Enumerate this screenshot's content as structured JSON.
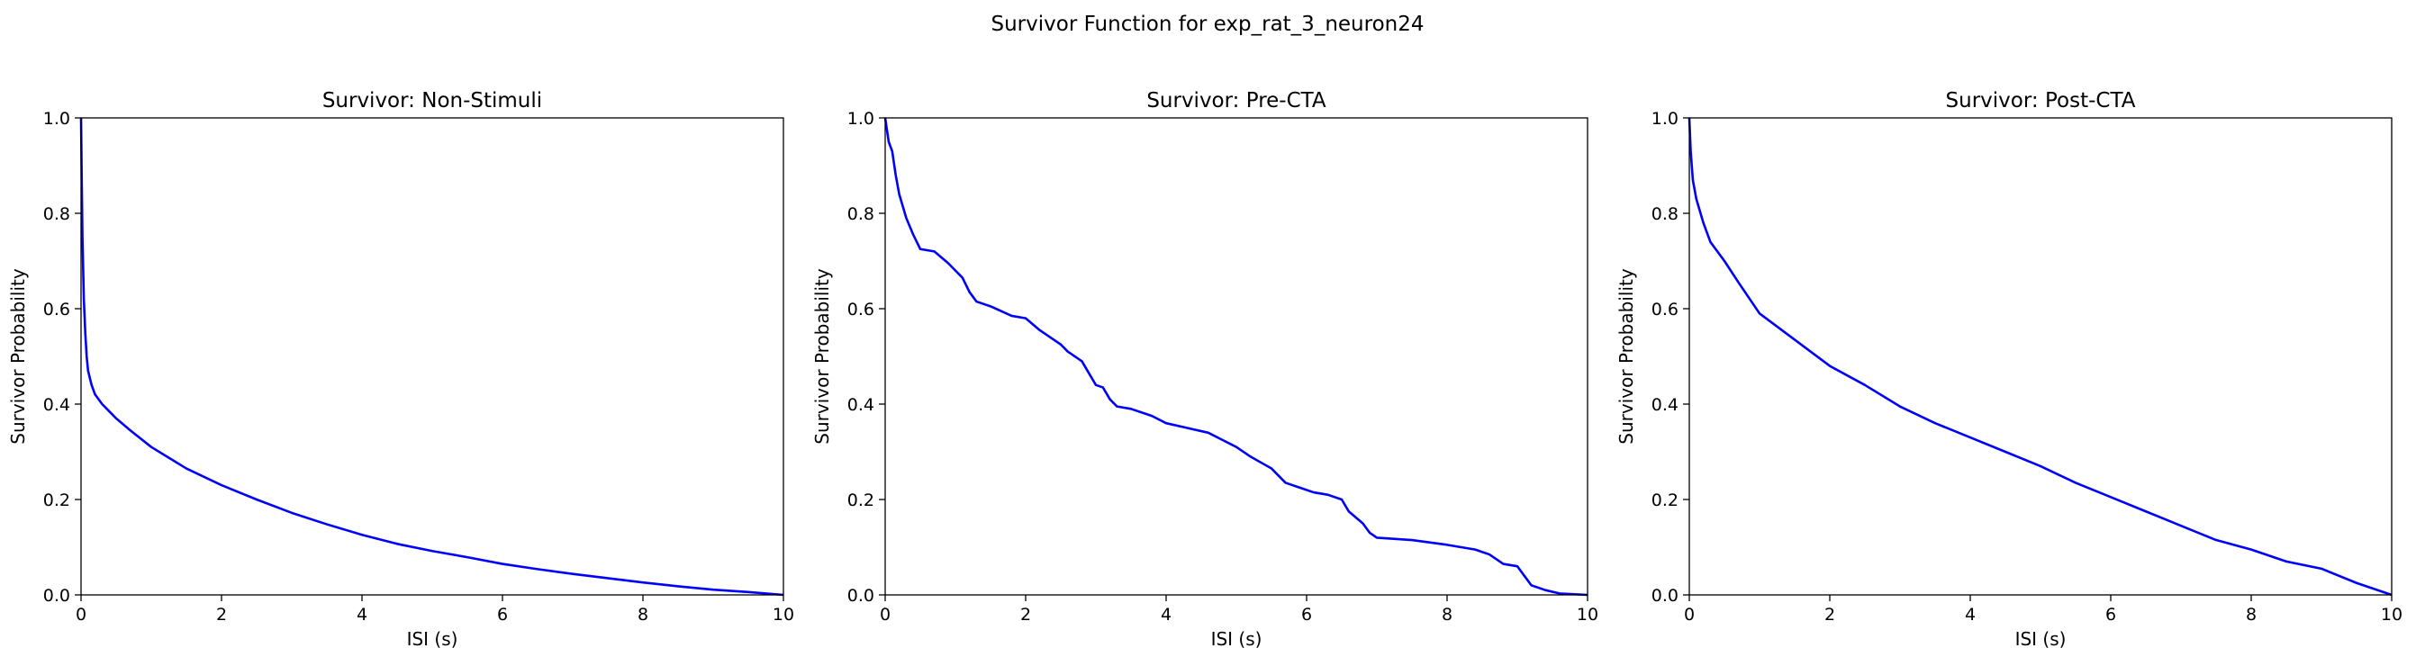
{
  "figure": {
    "suptitle": "Survivor Function for exp_rat_3_neuron24"
  },
  "chart_data": [
    {
      "type": "line",
      "title": "Survivor: Non-Stimuli",
      "xlabel": "ISI (s)",
      "ylabel": "Survivor Probability",
      "xlim": [
        0,
        10
      ],
      "ylim": [
        0,
        1
      ],
      "xticks": [
        "0",
        "2",
        "4",
        "6",
        "8",
        "10"
      ],
      "yticks": [
        "0.0",
        "0.2",
        "0.4",
        "0.6",
        "0.8",
        "1.0"
      ],
      "grid": false,
      "legend": "none",
      "color": "#0000ff",
      "x": [
        0,
        0.01,
        0.02,
        0.04,
        0.06,
        0.08,
        0.1,
        0.15,
        0.2,
        0.3,
        0.4,
        0.5,
        0.7,
        1.0,
        1.5,
        2.0,
        2.5,
        3.0,
        3.5,
        4.0,
        4.5,
        5.0,
        5.5,
        6.0,
        6.5,
        7.0,
        7.5,
        8.0,
        8.5,
        9.0,
        9.5,
        10.0
      ],
      "y": [
        1.0,
        0.87,
        0.75,
        0.62,
        0.55,
        0.5,
        0.47,
        0.44,
        0.42,
        0.4,
        0.385,
        0.37,
        0.345,
        0.31,
        0.265,
        0.23,
        0.2,
        0.172,
        0.148,
        0.126,
        0.107,
        0.092,
        0.079,
        0.065,
        0.054,
        0.044,
        0.035,
        0.026,
        0.018,
        0.011,
        0.006,
        0.0
      ]
    },
    {
      "type": "line",
      "title": "Survivor: Pre-CTA",
      "xlabel": "ISI (s)",
      "ylabel": "Survivor Probability",
      "xlim": [
        0,
        10
      ],
      "ylim": [
        0,
        1
      ],
      "xticks": [
        "0",
        "2",
        "4",
        "6",
        "8",
        "10"
      ],
      "yticks": [
        "0.0",
        "0.2",
        "0.4",
        "0.6",
        "0.8",
        "1.0"
      ],
      "grid": false,
      "legend": "none",
      "color": "#0000ff",
      "x": [
        0,
        0.05,
        0.1,
        0.15,
        0.2,
        0.3,
        0.4,
        0.5,
        0.7,
        0.9,
        1.0,
        1.1,
        1.2,
        1.3,
        1.5,
        1.8,
        2.0,
        2.2,
        2.4,
        2.5,
        2.6,
        2.8,
        2.9,
        3.0,
        3.1,
        3.2,
        3.3,
        3.5,
        3.8,
        4.0,
        4.3,
        4.6,
        4.8,
        5.0,
        5.2,
        5.5,
        5.7,
        5.9,
        6.1,
        6.3,
        6.5,
        6.6,
        6.8,
        6.9,
        7.0,
        7.5,
        8.0,
        8.4,
        8.6,
        8.8,
        9.0,
        9.1,
        9.2,
        9.4,
        9.6,
        10.0
      ],
      "y": [
        1.0,
        0.95,
        0.93,
        0.88,
        0.84,
        0.79,
        0.755,
        0.725,
        0.72,
        0.695,
        0.68,
        0.665,
        0.635,
        0.615,
        0.605,
        0.585,
        0.58,
        0.555,
        0.535,
        0.525,
        0.51,
        0.49,
        0.465,
        0.44,
        0.435,
        0.41,
        0.395,
        0.39,
        0.375,
        0.36,
        0.35,
        0.34,
        0.325,
        0.31,
        0.29,
        0.265,
        0.235,
        0.225,
        0.215,
        0.21,
        0.2,
        0.175,
        0.15,
        0.13,
        0.12,
        0.115,
        0.105,
        0.095,
        0.085,
        0.065,
        0.06,
        0.04,
        0.02,
        0.01,
        0.003,
        0.0
      ]
    },
    {
      "type": "line",
      "title": "Survivor: Post-CTA",
      "xlabel": "ISI (s)",
      "ylabel": "Survivor Probability",
      "xlim": [
        0,
        10
      ],
      "ylim": [
        0,
        1
      ],
      "xticks": [
        "0",
        "2",
        "4",
        "6",
        "8",
        "10"
      ],
      "yticks": [
        "0.0",
        "0.2",
        "0.4",
        "0.6",
        "0.8",
        "1.0"
      ],
      "grid": false,
      "legend": "none",
      "color": "#0000ff",
      "x": [
        0,
        0.02,
        0.05,
        0.1,
        0.2,
        0.3,
        0.5,
        0.7,
        1.0,
        1.5,
        2.0,
        2.5,
        3.0,
        3.5,
        4.0,
        4.5,
        5.0,
        5.5,
        6.0,
        6.5,
        7.0,
        7.5,
        8.0,
        8.5,
        9.0,
        9.5,
        10.0
      ],
      "y": [
        1.0,
        0.93,
        0.87,
        0.83,
        0.78,
        0.74,
        0.7,
        0.655,
        0.59,
        0.535,
        0.48,
        0.44,
        0.395,
        0.36,
        0.33,
        0.3,
        0.27,
        0.235,
        0.205,
        0.175,
        0.145,
        0.115,
        0.095,
        0.07,
        0.055,
        0.025,
        0.0
      ]
    }
  ]
}
